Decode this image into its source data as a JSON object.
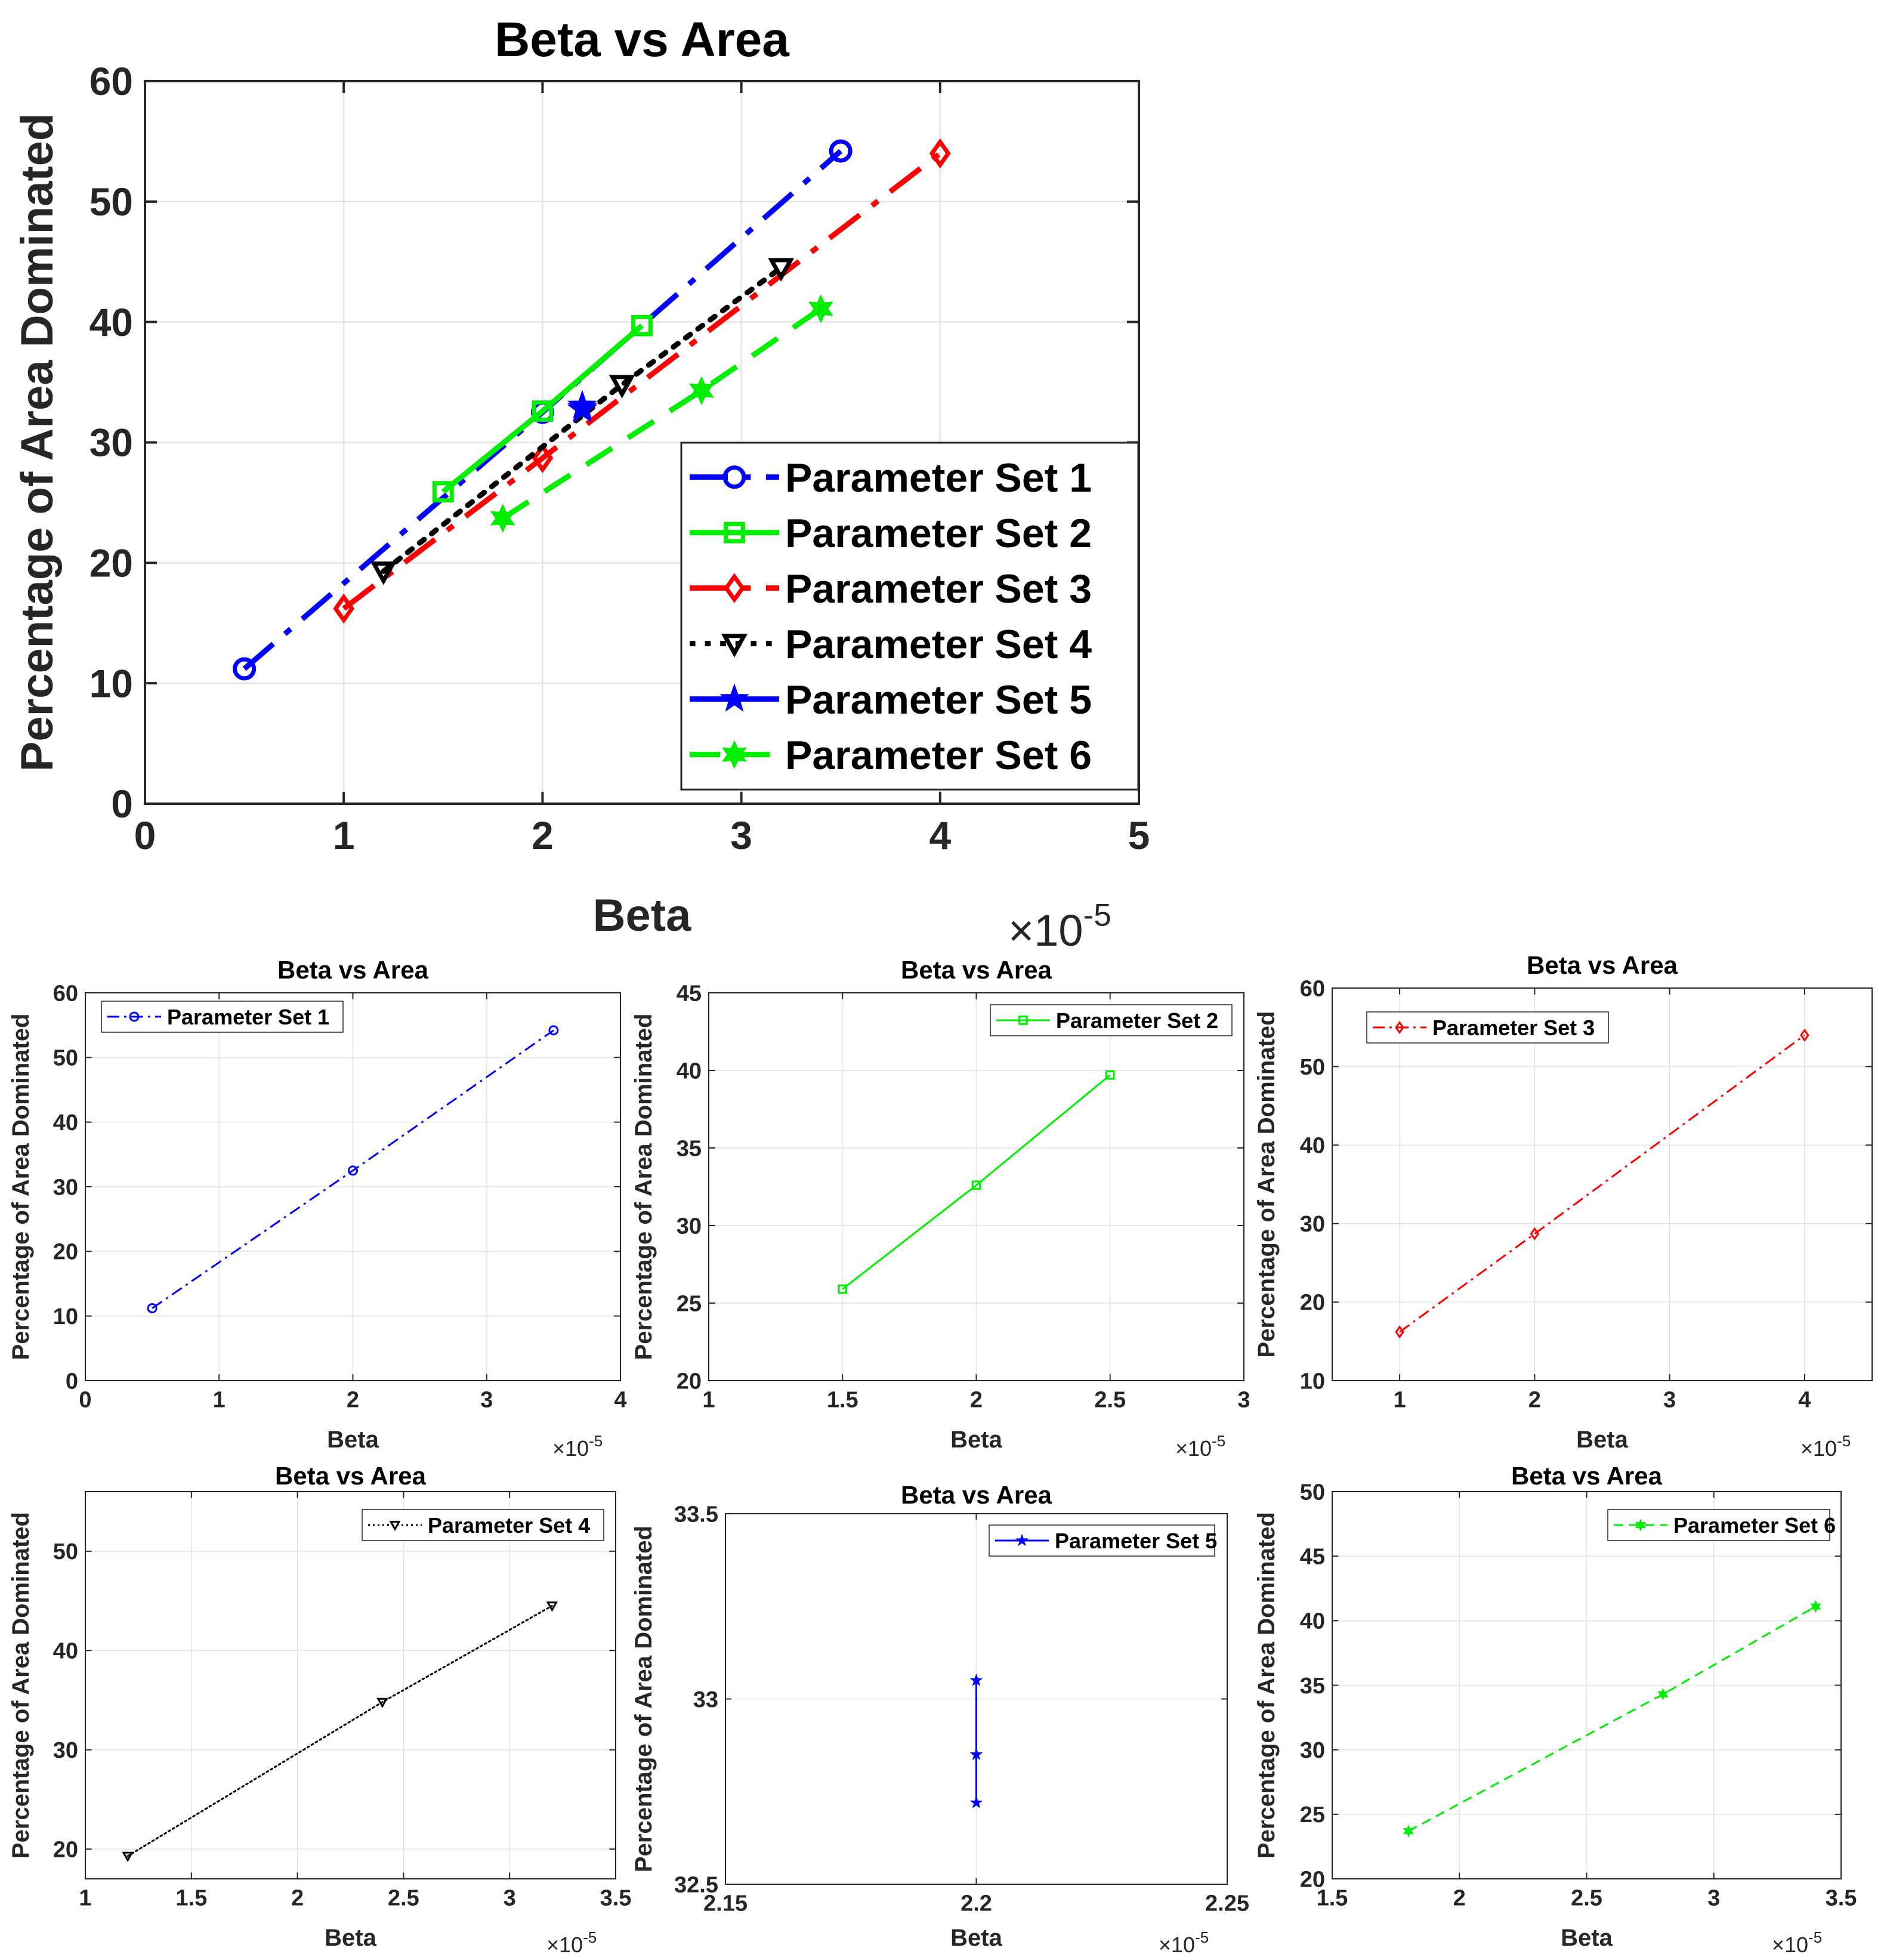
{
  "chart_data": [
    {
      "type": "line",
      "title": "Beta vs Area",
      "xlabel": "Beta",
      "ylabel": "Percentage of Area Dominated",
      "xlim": [
        0,
        5
      ],
      "ylim": [
        0,
        60
      ],
      "xticks": [
        0,
        1,
        2,
        3,
        4,
        5
      ],
      "yticks": [
        0,
        10,
        20,
        30,
        40,
        50,
        60
      ],
      "xtick_labels": [
        "0",
        "1",
        "2",
        "3",
        "4",
        "5"
      ],
      "ytick_labels": [
        "0",
        "10",
        "20",
        "30",
        "40",
        "50",
        "60"
      ],
      "x_exponent": "-5",
      "grid": true,
      "legend": "bottom-right",
      "series": [
        {
          "name": "Parameter Set 1",
          "color": "#0000ff",
          "marker": "circle",
          "dash": "dashdot",
          "x": [
            0.5,
            2,
            3.5
          ],
          "y": [
            11.2,
            32.5,
            54.2
          ]
        },
        {
          "name": "Parameter Set 2",
          "color": "#00ee00",
          "marker": "square",
          "dash": "solid",
          "x": [
            1.5,
            2,
            2.5
          ],
          "y": [
            25.9,
            32.6,
            39.7
          ]
        },
        {
          "name": "Parameter Set 3",
          "color": "#ff0000",
          "marker": "diamond",
          "dash": "dashdot",
          "x": [
            1,
            2,
            4
          ],
          "y": [
            16.2,
            28.7,
            54.0
          ]
        },
        {
          "name": "Parameter Set 4",
          "color": "#000000",
          "marker": "triangle-down",
          "dash": "dotted",
          "x": [
            1.2,
            2.4,
            3.2
          ],
          "y": [
            19.3,
            34.8,
            44.5
          ]
        },
        {
          "name": "Parameter Set 5",
          "color": "#0000ff",
          "marker": "star",
          "dash": "solid",
          "x": [
            2.2,
            2.2,
            2.2
          ],
          "y": [
            33.05,
            32.85,
            32.72
          ]
        },
        {
          "name": "Parameter Set 6",
          "color": "#00ee00",
          "marker": "hexagram",
          "dash": "dashed",
          "x": [
            1.8,
            2.8,
            3.4
          ],
          "y": [
            23.7,
            34.3,
            41.1
          ]
        }
      ]
    },
    {
      "type": "line",
      "title": "Beta vs Area",
      "xlabel": "Beta",
      "ylabel": "Percentage of Area Dominated",
      "xlim": [
        0,
        4
      ],
      "ylim": [
        0,
        60
      ],
      "xticks": [
        0,
        1,
        2,
        3,
        4
      ],
      "yticks": [
        0,
        10,
        20,
        30,
        40,
        50,
        60
      ],
      "xtick_labels": [
        "0",
        "1",
        "2",
        "3",
        "4"
      ],
      "ytick_labels": [
        "0",
        "10",
        "20",
        "30",
        "40",
        "50",
        "60"
      ],
      "x_exponent": "-5",
      "grid": true,
      "legend": "top-left",
      "series": [
        {
          "name": "Parameter Set 1",
          "color": "#0000ff",
          "marker": "circle",
          "dash": "dashdot",
          "x": [
            0.5,
            2,
            3.5
          ],
          "y": [
            11.2,
            32.5,
            54.2
          ]
        }
      ]
    },
    {
      "type": "line",
      "title": "Beta vs Area",
      "xlabel": "Beta",
      "ylabel": "Percentage of Area Dominated",
      "xlim": [
        1,
        3
      ],
      "ylim": [
        20,
        45
      ],
      "xticks": [
        1,
        1.5,
        2,
        2.5,
        3
      ],
      "yticks": [
        20,
        25,
        30,
        35,
        40,
        45
      ],
      "xtick_labels": [
        "1",
        "1.5",
        "2",
        "2.5",
        "3"
      ],
      "ytick_labels": [
        "20",
        "25",
        "30",
        "35",
        "40",
        "45"
      ],
      "x_exponent": "-5",
      "grid": true,
      "legend": "top-right",
      "series": [
        {
          "name": "Parameter Set 2",
          "color": "#00ee00",
          "marker": "square",
          "dash": "solid",
          "x": [
            1.5,
            2,
            2.5
          ],
          "y": [
            25.9,
            32.6,
            39.7
          ]
        }
      ]
    },
    {
      "type": "line",
      "title": "Beta vs Area",
      "xlabel": "Beta",
      "ylabel": "Percentage of Area Dominated",
      "xlim": [
        0.5,
        4.5
      ],
      "ylim": [
        10,
        60
      ],
      "xticks": [
        1,
        2,
        3,
        4
      ],
      "yticks": [
        10,
        20,
        30,
        40,
        50,
        60
      ],
      "xtick_labels": [
        "1",
        "2",
        "3",
        "4"
      ],
      "ytick_labels": [
        "10",
        "20",
        "30",
        "40",
        "50",
        "60"
      ],
      "x_exponent": "-5",
      "grid": true,
      "legend": "top-left",
      "series": [
        {
          "name": "Parameter Set 3",
          "color": "#ff0000",
          "marker": "diamond",
          "dash": "dashdot",
          "x": [
            1,
            2,
            4
          ],
          "y": [
            16.2,
            28.7,
            54.0
          ]
        }
      ]
    },
    {
      "type": "line",
      "title": "Beta vs Area",
      "xlabel": "Beta",
      "ylabel": "Percentage of Area Dominated",
      "xlim": [
        1,
        3.5
      ],
      "ylim": [
        17,
        56
      ],
      "xticks": [
        1,
        1.5,
        2,
        2.5,
        3,
        3.5
      ],
      "yticks": [
        20,
        30,
        40,
        50
      ],
      "xtick_labels": [
        "1",
        "1.5",
        "2",
        "2.5",
        "3",
        "3.5"
      ],
      "ytick_labels": [
        "20",
        "30",
        "40",
        "50"
      ],
      "x_exponent": "-5",
      "grid": true,
      "legend": "top-right",
      "series": [
        {
          "name": "Parameter Set 4",
          "color": "#000000",
          "marker": "triangle-down",
          "dash": "dotted",
          "x": [
            1.2,
            2.4,
            3.2
          ],
          "y": [
            19.3,
            34.8,
            44.5
          ]
        }
      ]
    },
    {
      "type": "line",
      "title": "Beta vs Area",
      "xlabel": "Beta",
      "ylabel": "Percentage of Area Dominated",
      "xlim": [
        2.15,
        2.25
      ],
      "ylim": [
        32.5,
        33.5
      ],
      "xticks": [
        2.15,
        2.2,
        2.25
      ],
      "yticks": [
        32.5,
        33,
        33.5
      ],
      "xtick_labels": [
        "2.15",
        "2.2",
        "2.25"
      ],
      "ytick_labels": [
        "32.5",
        "33",
        "33.5"
      ],
      "x_exponent": "-5",
      "grid": true,
      "legend": "top-right",
      "series": [
        {
          "name": "Parameter Set 5",
          "color": "#0000ff",
          "marker": "star",
          "dash": "solid",
          "x": [
            2.2,
            2.2,
            2.2
          ],
          "y": [
            33.05,
            32.85,
            32.72
          ]
        }
      ]
    },
    {
      "type": "line",
      "title": "Beta vs Area",
      "xlabel": "Beta",
      "ylabel": "Percentage of Area Dominated",
      "xlim": [
        1.5,
        3.5
      ],
      "ylim": [
        20,
        50
      ],
      "xticks": [
        1.5,
        2,
        2.5,
        3,
        3.5
      ],
      "yticks": [
        20,
        25,
        30,
        35,
        40,
        45,
        50
      ],
      "xtick_labels": [
        "1.5",
        "2",
        "2.5",
        "3",
        "3.5"
      ],
      "ytick_labels": [
        "20",
        "25",
        "30",
        "35",
        "40",
        "45",
        "50"
      ],
      "x_exponent": "-5",
      "grid": true,
      "legend": "top-right",
      "series": [
        {
          "name": "Parameter Set 6",
          "color": "#00ee00",
          "marker": "hexagram",
          "dash": "dashed",
          "x": [
            1.8,
            2.8,
            3.4
          ],
          "y": [
            23.7,
            34.3,
            41.1
          ]
        }
      ]
    }
  ]
}
